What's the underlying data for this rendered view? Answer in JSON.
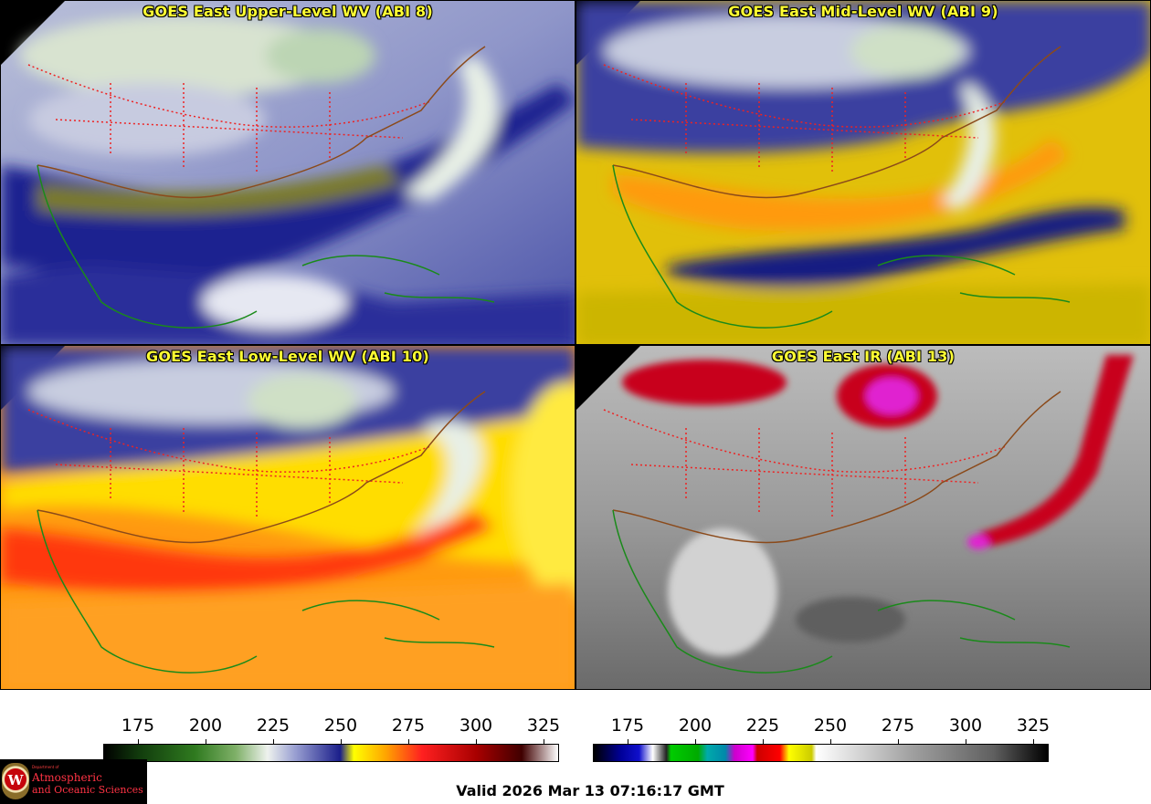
{
  "panels": [
    {
      "title": "GOES East Upper-Level WV (ABI 8)",
      "type": "wv_upper"
    },
    {
      "title": "GOES East Mid-Level WV (ABI 9)",
      "type": "wv_mid"
    },
    {
      "title": "GOES East Low-Level WV (ABI 10)",
      "type": "wv_low"
    },
    {
      "title": "GOES East IR (ABI 13)",
      "type": "ir"
    }
  ],
  "colorbars": {
    "wv": {
      "ticks": [
        "175",
        "200",
        "225",
        "250",
        "275",
        "300",
        "325"
      ]
    },
    "ir": {
      "ticks": [
        "175",
        "200",
        "225",
        "250",
        "275",
        "300",
        "325"
      ]
    }
  },
  "valid_time": "Valid 2026 Mar 13 07:16:17 GMT",
  "logo": {
    "line1": "Department of",
    "line2": "Atmospheric",
    "line3": "and Oceanic Sciences",
    "seal_letter": "W"
  },
  "colors": {
    "state_borders": "#ee2222",
    "coastlines_us": "#8b4a1a",
    "coastlines_intl": "#1a8a1a",
    "panel_title": "#ffff33"
  },
  "icons": {
    "logo_seal": "uw-crest-icon"
  }
}
